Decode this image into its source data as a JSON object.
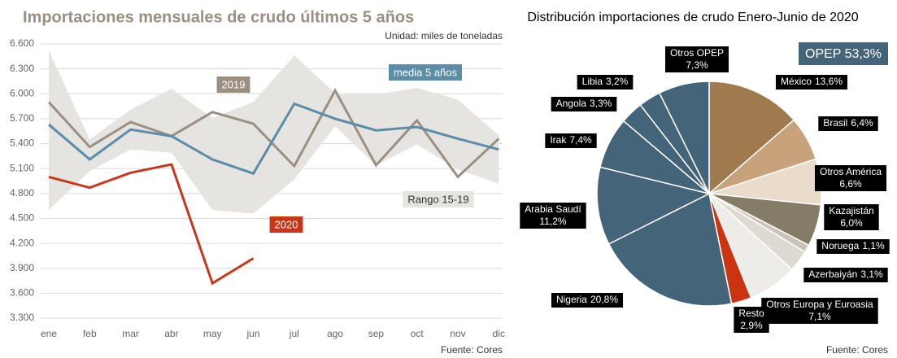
{
  "chart_data": [
    {
      "type": "line",
      "title": "Importaciones mensuales de crudo últimos 5 años",
      "subtitle": "Unidad: miles de toneladas",
      "source": "Fuente: Cores",
      "categories": [
        "ene",
        "feb",
        "mar",
        "abr",
        "may",
        "jun",
        "jul",
        "ago",
        "sep",
        "oct",
        "nov",
        "dic"
      ],
      "ylim": [
        3300,
        6600
      ],
      "yticks": [
        {
          "value": 3300,
          "label": "3.300"
        },
        {
          "value": 3600,
          "label": "3.600"
        },
        {
          "value": 3900,
          "label": "3.900"
        },
        {
          "value": 4200,
          "label": "4.200"
        },
        {
          "value": 4500,
          "label": "4.500"
        },
        {
          "value": 4800,
          "label": "4.800"
        },
        {
          "value": 5100,
          "label": "5.100"
        },
        {
          "value": 5400,
          "label": "5.400"
        },
        {
          "value": 5700,
          "label": "5.700"
        },
        {
          "value": 6000,
          "label": "6.000"
        },
        {
          "value": 6300,
          "label": "6.300"
        },
        {
          "value": 6600,
          "label": "6.600"
        }
      ],
      "grid": true,
      "series": [
        {
          "name": "Rango 15-19",
          "color": "#e6e4e1",
          "high": [
            6520,
            5450,
            5810,
            6060,
            5710,
            5900,
            6460,
            6010,
            5990,
            6070,
            5930,
            5500
          ],
          "low": [
            4600,
            5070,
            5330,
            5290,
            4600,
            4560,
            4970,
            5610,
            5140,
            5390,
            5090,
            4920
          ]
        },
        {
          "name": "2019",
          "color": "#9b8f82",
          "values": [
            5900,
            5360,
            5660,
            5490,
            5780,
            5640,
            5130,
            6040,
            5140,
            5680,
            5000,
            5460
          ]
        },
        {
          "name": "media 5 años",
          "color": "#5b8ca8",
          "values": [
            5630,
            5210,
            5570,
            5490,
            5210,
            5040,
            5880,
            5700,
            5560,
            5600,
            5460,
            5330
          ]
        },
        {
          "name": "2020",
          "color": "#c8371a",
          "values": [
            5000,
            4870,
            5050,
            5150,
            3720,
            4020,
            null,
            null,
            null,
            null,
            null,
            null
          ]
        }
      ]
    },
    {
      "type": "pie",
      "title": "Distribución importaciones de crudo Enero-Junio de 2020",
      "source": "Fuente: Cores",
      "annotation": "OPEP 53,3%",
      "categories": [
        "México",
        "Brasil",
        "Otros América",
        "Kazajistán",
        "Noruega",
        "Azerbaiyán",
        "Otros Europa y Euroasia",
        "Resto",
        "Nigeria",
        "Arabia Saudí",
        "Irak",
        "Angola",
        "Libia",
        "Otros OPEP"
      ],
      "values": [
        13.6,
        6.4,
        6.6,
        6.0,
        1.1,
        3.1,
        7.1,
        2.9,
        20.8,
        11.2,
        7.4,
        3.3,
        3.2,
        7.3
      ],
      "value_labels": [
        "13,6%",
        "6,4%",
        "6,6%",
        "6,0%",
        "1,1%",
        "3,1%",
        "7,1%",
        "2,9%",
        "20,8%",
        "11,2%",
        "7,4%",
        "3,3%",
        "3,2%",
        "7,3%"
      ],
      "colors": [
        "#a07a4f",
        "#c8a27a",
        "#e9dccb",
        "#857c68",
        "#c8c4b8",
        "#dedad2",
        "#eeece8",
        "#cc3311",
        "#44647a",
        "#44647a",
        "#44647a",
        "#44647a",
        "#44647a",
        "#44647a"
      ]
    }
  ]
}
